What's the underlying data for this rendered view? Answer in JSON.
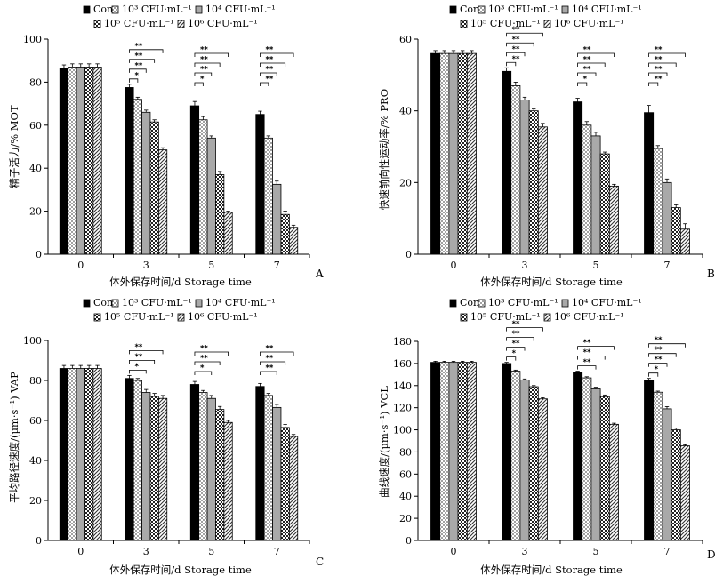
{
  "figure": {
    "series_names": [
      "Con",
      "10³ CFU·mL⁻¹",
      "10⁴ CFU·mL⁻¹",
      "10⁵ CFU·mL⁻¹",
      "10⁶ CFU·mL⁻¹"
    ]
  },
  "chart_data": [
    {
      "type": "bar",
      "panel_label": "A",
      "xlabel": "体外保存时间/d Storage time",
      "ylabel": "精子活力/% MOT",
      "ylim": [
        0,
        100
      ],
      "yticks": [
        0,
        20,
        40,
        60,
        80,
        100
      ],
      "categories": [
        "0",
        "3",
        "5",
        "7"
      ],
      "series": [
        {
          "name": "Con",
          "values": [
            86.5,
            77.5,
            69,
            65
          ],
          "errors": [
            1.5,
            1.5,
            2,
            1.5
          ]
        },
        {
          "name": "10³ CFU·mL⁻¹",
          "values": [
            87,
            72,
            62.5,
            54
          ],
          "errors": [
            1.5,
            1,
            1.5,
            1
          ]
        },
        {
          "name": "10⁴ CFU·mL⁻¹",
          "values": [
            87,
            66,
            54,
            32.5
          ],
          "errors": [
            1.5,
            1,
            1,
            1.5
          ]
        },
        {
          "name": "10⁵ CFU·mL⁻¹",
          "values": [
            87,
            61.5,
            37,
            18.5
          ],
          "errors": [
            1.5,
            1,
            1.5,
            1.5
          ]
        },
        {
          "name": "10⁶ CFU·mL⁻¹",
          "values": [
            87,
            48.5,
            19.5,
            12.5
          ],
          "errors": [
            1.5,
            1,
            0.5,
            1
          ]
        }
      ],
      "significance": [
        {
          "category": "3",
          "labels": [
            "*",
            "**",
            "**",
            "**"
          ]
        },
        {
          "category": "5",
          "labels": [
            "*",
            "**",
            "**",
            "**"
          ]
        },
        {
          "category": "7",
          "labels": [
            "**",
            "**",
            "**",
            "**"
          ]
        }
      ]
    },
    {
      "type": "bar",
      "panel_label": "B",
      "xlabel": "体外保存时间/d Storage time",
      "ylabel": "快速前向性运动率/% PRO",
      "ylim": [
        0,
        60
      ],
      "yticks": [
        0,
        20,
        40,
        60
      ],
      "categories": [
        "0",
        "3",
        "5",
        "7"
      ],
      "series": [
        {
          "name": "Con",
          "values": [
            56,
            51,
            42.5,
            39.5
          ],
          "errors": [
            0.8,
            1,
            1,
            2
          ]
        },
        {
          "name": "10³ CFU·mL⁻¹",
          "values": [
            56,
            47,
            36,
            29.5
          ],
          "errors": [
            0.8,
            1,
            1,
            0.8
          ]
        },
        {
          "name": "10⁴ CFU·mL⁻¹",
          "values": [
            56,
            43,
            33,
            20
          ],
          "errors": [
            0.8,
            0.8,
            1,
            1
          ]
        },
        {
          "name": "10⁵ CFU·mL⁻¹",
          "values": [
            56,
            40,
            28,
            13
          ],
          "errors": [
            0.8,
            0.5,
            0.5,
            0.8
          ]
        },
        {
          "name": "10⁶ CFU·mL⁻¹",
          "values": [
            56,
            35.5,
            19,
            7
          ],
          "errors": [
            0.8,
            1,
            0.5,
            1.5
          ]
        }
      ],
      "significance": [
        {
          "category": "3",
          "labels": [
            "**",
            "**",
            "**",
            "**"
          ]
        },
        {
          "category": "5",
          "labels": [
            "*",
            "**",
            "**",
            "**"
          ]
        },
        {
          "category": "7",
          "labels": [
            "**",
            "**",
            "**",
            "**"
          ]
        }
      ]
    },
    {
      "type": "bar",
      "panel_label": "C",
      "xlabel": "体外保存时间/d Storage time",
      "ylabel": "平均路径速度/(µm·s⁻¹) VAP",
      "ylim": [
        0,
        100
      ],
      "yticks": [
        0,
        20,
        40,
        60,
        80,
        100
      ],
      "categories": [
        "0",
        "3",
        "5",
        "7"
      ],
      "series": [
        {
          "name": "Con",
          "values": [
            86,
            81,
            78,
            77
          ],
          "errors": [
            1.5,
            1.5,
            1.5,
            1.5
          ]
        },
        {
          "name": "10³ CFU·mL⁻¹",
          "values": [
            86,
            80,
            74,
            72.5
          ],
          "errors": [
            1.5,
            1,
            1,
            1
          ]
        },
        {
          "name": "10⁴ CFU·mL⁻¹",
          "values": [
            86,
            74,
            71,
            66.5
          ],
          "errors": [
            1.5,
            1.5,
            1.5,
            1.5
          ]
        },
        {
          "name": "10⁵ CFU·mL⁻¹",
          "values": [
            86,
            72,
            65.5,
            56.5
          ],
          "errors": [
            1.5,
            1.5,
            1.5,
            1.5
          ]
        },
        {
          "name": "10⁶ CFU·mL⁻¹",
          "values": [
            86,
            71,
            59,
            52
          ],
          "errors": [
            1.5,
            1.5,
            1,
            1
          ]
        }
      ],
      "significance": [
        {
          "category": "3",
          "labels": [
            "*",
            "**",
            "**"
          ]
        },
        {
          "category": "5",
          "labels": [
            "*",
            "**",
            "**"
          ]
        },
        {
          "category": "7",
          "labels": [
            "**",
            "**",
            "**"
          ]
        }
      ]
    },
    {
      "type": "bar",
      "panel_label": "D",
      "xlabel": "体外保存时间/d Storage time",
      "ylabel": "曲线速度/(µm·s⁻¹) VCL",
      "ylim": [
        0,
        180
      ],
      "yticks": [
        0,
        20,
        40,
        60,
        80,
        100,
        120,
        140,
        160,
        180
      ],
      "categories": [
        "0",
        "3",
        "5",
        "7"
      ],
      "series": [
        {
          "name": "Con",
          "values": [
            161,
            160,
            152,
            145
          ],
          "errors": [
            1,
            1,
            1,
            1.5
          ]
        },
        {
          "name": "10³ CFU·mL⁻¹",
          "values": [
            161,
            153,
            147,
            134
          ],
          "errors": [
            1,
            1,
            1,
            1
          ]
        },
        {
          "name": "10⁴ CFU·mL⁻¹",
          "values": [
            161,
            145,
            137,
            119
          ],
          "errors": [
            1,
            1,
            1.5,
            2
          ]
        },
        {
          "name": "10⁵ CFU·mL⁻¹",
          "values": [
            161,
            139,
            130,
            100
          ],
          "errors": [
            1,
            1,
            1.5,
            1.5
          ]
        },
        {
          "name": "10⁶ CFU·mL⁻¹",
          "values": [
            161,
            128,
            105,
            85.5
          ],
          "errors": [
            1,
            1,
            1,
            1
          ]
        }
      ],
      "significance": [
        {
          "category": "3",
          "labels": [
            "*",
            "**",
            "**",
            "**"
          ]
        },
        {
          "category": "5",
          "labels": [
            "**",
            "**",
            "**"
          ]
        },
        {
          "category": "7",
          "labels": [
            "*",
            "**",
            "**",
            "**"
          ]
        }
      ]
    }
  ]
}
